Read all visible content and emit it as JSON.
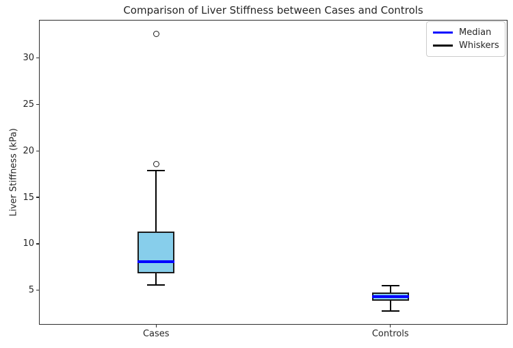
{
  "figure": {
    "title": "Comparison of Liver Stiffness between Cases and Controls",
    "ylabel": "Liver Stiffness (kPa)"
  },
  "legend": {
    "items": [
      {
        "label": "Median",
        "color": "#0000ff"
      },
      {
        "label": "Whiskers",
        "color": "#000000"
      }
    ]
  },
  "chart_data": {
    "type": "boxplot",
    "title": "Comparison of Liver Stiffness between Cases and Controls",
    "xlabel": "",
    "ylabel": "Liver Stiffness (kPa)",
    "categories": [
      "Cases",
      "Controls"
    ],
    "yticks": [
      5,
      10,
      15,
      20,
      25,
      30
    ],
    "ylim": [
      1.3,
      34.1
    ],
    "grid": true,
    "legend_position": "upper right",
    "series": [
      {
        "name": "Cases",
        "whisker_low": 5.6,
        "q1": 6.8,
        "median": 8.1,
        "q3": 11.3,
        "whisker_high": 17.9,
        "outliers": [
          18.6,
          32.6
        ]
      },
      {
        "name": "Controls",
        "whisker_low": 2.8,
        "q1": 3.9,
        "median": 4.3,
        "q3": 4.8,
        "whisker_high": 5.5,
        "outliers": []
      }
    ],
    "colors": {
      "box_fill": "#87ceeb",
      "box_edge": "#1a1a1a",
      "median": "#0000ff",
      "whisker": "#000000",
      "grid": "#d9d9d9"
    }
  }
}
